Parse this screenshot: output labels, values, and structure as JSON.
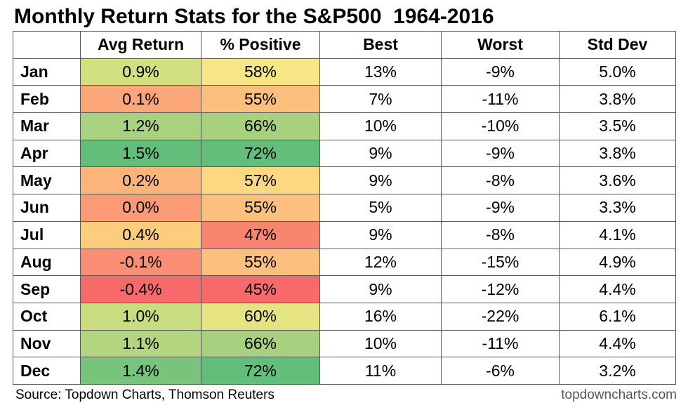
{
  "title": "Monthly Return Stats for the S&P500  1964-2016",
  "source": "Source: Topdown Charts, Thomson Reuters",
  "watermark": "topdowncharts.com",
  "chart_data": {
    "type": "table",
    "columns": [
      "",
      "Avg Return",
      "% Positive",
      "Best",
      "Worst",
      "Std Dev"
    ],
    "rows": [
      {
        "month": "Jan",
        "avg": "0.9%",
        "pos": "58%",
        "best": "13%",
        "worst": "-9%",
        "std": "5.0%",
        "avg_color": "#d3e080",
        "pos_color": "#f7e686"
      },
      {
        "month": "Feb",
        "avg": "0.1%",
        "pos": "55%",
        "best": "7%",
        "worst": "-11%",
        "std": "3.8%",
        "avg_color": "#fba77a",
        "pos_color": "#fcc07e"
      },
      {
        "month": "Mar",
        "avg": "1.2%",
        "pos": "66%",
        "best": "10%",
        "worst": "-10%",
        "std": "3.5%",
        "avg_color": "#a8d180",
        "pos_color": "#a8d17f"
      },
      {
        "month": "Apr",
        "avg": "1.5%",
        "pos": "72%",
        "best": "9%",
        "worst": "-9%",
        "std": "3.8%",
        "avg_color": "#63be7b",
        "pos_color": "#63be7b"
      },
      {
        "month": "May",
        "avg": "0.2%",
        "pos": "57%",
        "best": "9%",
        "worst": "-8%",
        "std": "3.6%",
        "avg_color": "#fcb47b",
        "pos_color": "#fed880"
      },
      {
        "month": "Jun",
        "avg": "0.0%",
        "pos": "55%",
        "best": "5%",
        "worst": "-9%",
        "std": "3.3%",
        "avg_color": "#fa9a77",
        "pos_color": "#fcc07e"
      },
      {
        "month": "Jul",
        "avg": "0.4%",
        "pos": "47%",
        "best": "9%",
        "worst": "-8%",
        "std": "4.1%",
        "avg_color": "#fdcd7e",
        "pos_color": "#f98570"
      },
      {
        "month": "Aug",
        "avg": "-0.1%",
        "pos": "55%",
        "best": "12%",
        "worst": "-15%",
        "std": "4.9%",
        "avg_color": "#f98e74",
        "pos_color": "#fcc07e"
      },
      {
        "month": "Sep",
        "avg": "-0.4%",
        "pos": "45%",
        "best": "9%",
        "worst": "-12%",
        "std": "4.4%",
        "avg_color": "#f8696b",
        "pos_color": "#f8696b"
      },
      {
        "month": "Oct",
        "avg": "1.0%",
        "pos": "60%",
        "best": "16%",
        "worst": "-22%",
        "std": "6.1%",
        "avg_color": "#c9dd80",
        "pos_color": "#e5e483"
      },
      {
        "month": "Nov",
        "avg": "1.1%",
        "pos": "66%",
        "best": "10%",
        "worst": "-11%",
        "std": "4.4%",
        "avg_color": "#b4d57f",
        "pos_color": "#a8d17f"
      },
      {
        "month": "Dec",
        "avg": "1.4%",
        "pos": "72%",
        "best": "11%",
        "worst": "-6%",
        "std": "3.2%",
        "avg_color": "#78c47c",
        "pos_color": "#63be7b"
      }
    ]
  }
}
